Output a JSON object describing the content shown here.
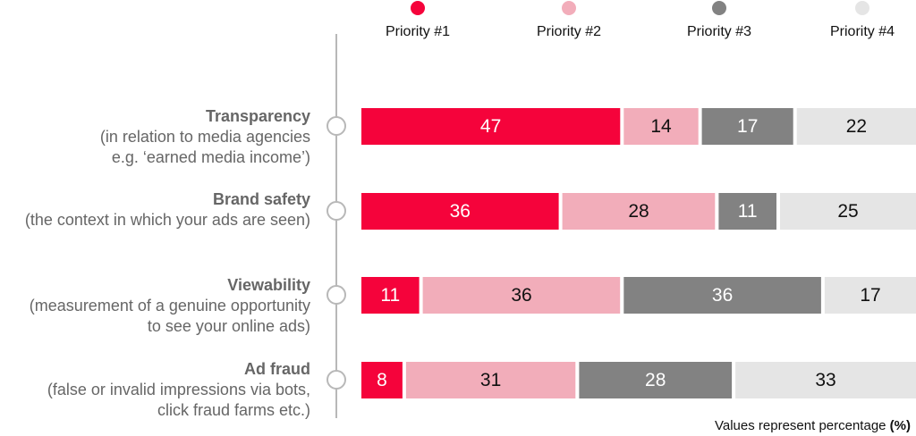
{
  "note": {
    "prefix": "Values represent percentage ",
    "unit": "(%)"
  },
  "chart_data": {
    "type": "bar",
    "orientation": "horizontal",
    "stacked": true,
    "unit": "%",
    "xlim": [
      0,
      100
    ],
    "grid": false,
    "legend_position": "top",
    "categories": [
      {
        "title": "Transparency",
        "description": [
          "(in relation to media agencies",
          "e.g. ‘earned media income’)"
        ]
      },
      {
        "title": "Brand safety",
        "description": [
          "(the context in which your ads are seen)"
        ]
      },
      {
        "title": "Viewability",
        "description": [
          "(measurement of a genuine opportunity",
          "to see your online ads)"
        ]
      },
      {
        "title": "Ad fraud",
        "description": [
          "(false or invalid impressions via bots,",
          "click fraud farms etc.)"
        ]
      }
    ],
    "series": [
      {
        "name": "Priority #1",
        "color": "#f5033b",
        "label_color": "#ffffff",
        "values": [
          47,
          36,
          11,
          8
        ]
      },
      {
        "name": "Priority #2",
        "color": "#f2adba",
        "label_color": "#111111",
        "values": [
          14,
          28,
          36,
          31
        ]
      },
      {
        "name": "Priority #3",
        "color": "#828282",
        "label_color": "#ffffff",
        "values": [
          17,
          11,
          36,
          28
        ]
      },
      {
        "name": "Priority #4",
        "color": "#e5e5e5",
        "label_color": "#111111",
        "values": [
          22,
          25,
          17,
          33
        ]
      }
    ]
  }
}
